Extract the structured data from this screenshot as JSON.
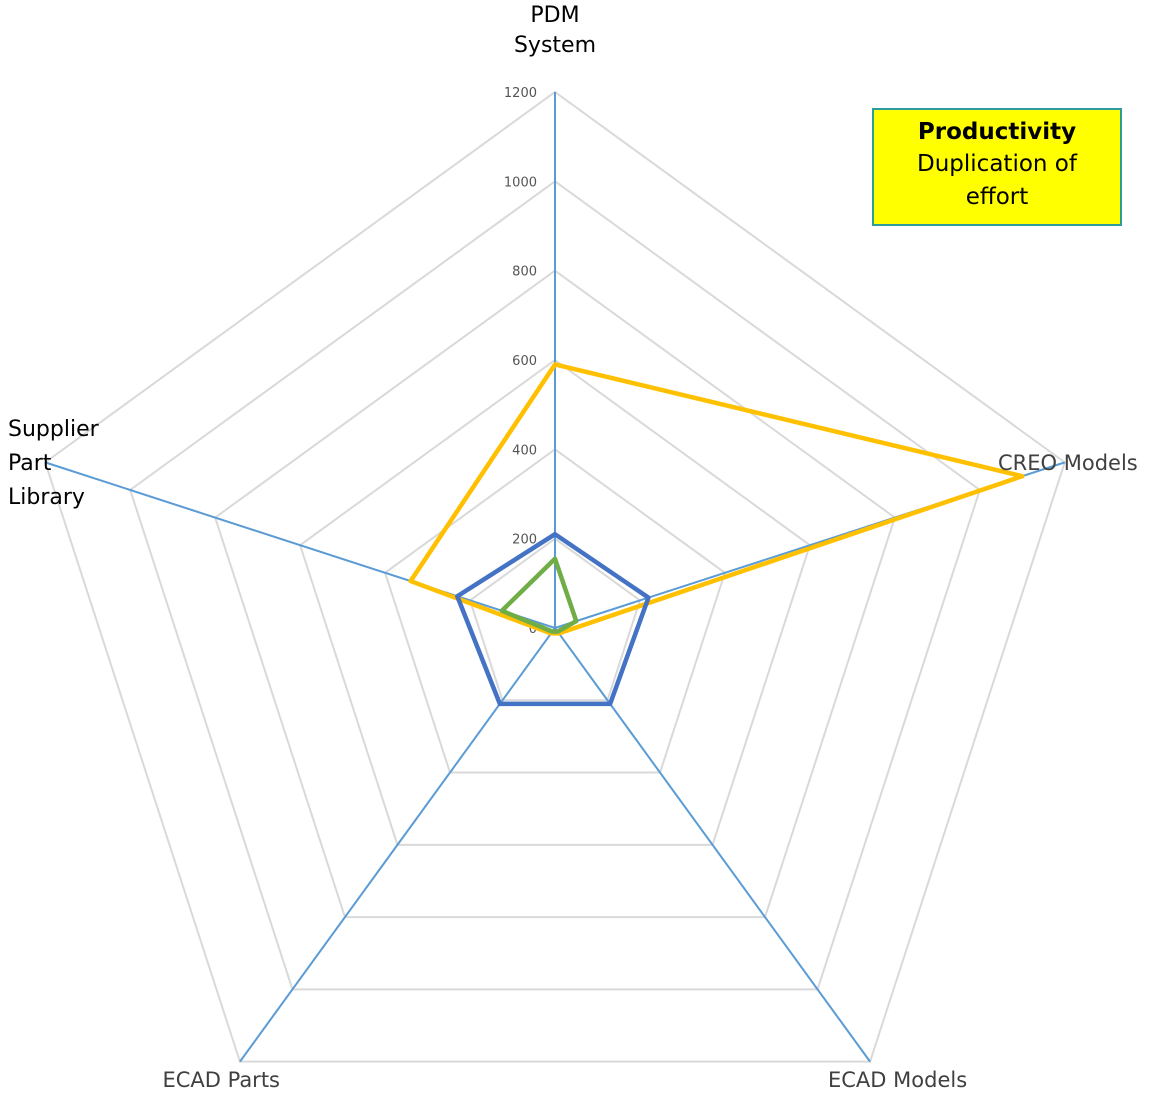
{
  "chart_data": {
    "type": "radar",
    "title": "",
    "categories": [
      "PDM System",
      "CREO Models",
      "ECAD Models",
      "ECAD Parts",
      "Supplier Part Library"
    ],
    "category_label_lines": [
      [
        "PDM",
        "System"
      ],
      [
        "CREO Models"
      ],
      [
        "ECAD Models"
      ],
      [
        "ECAD Parts"
      ],
      [
        "Supplier",
        "Part",
        "Library"
      ]
    ],
    "rlim": [
      0,
      1200
    ],
    "ticks": [
      0,
      200,
      400,
      600,
      800,
      1000,
      1200
    ],
    "tick_labels": [
      "0",
      "200",
      "400",
      "600",
      "800",
      "1000",
      "1200"
    ],
    "grid": true,
    "series": [
      {
        "color": "#ffc000",
        "values": [
          590,
          1100,
          15,
          15,
          340
        ]
      },
      {
        "color": "#4472c4",
        "values": [
          210,
          220,
          210,
          210,
          230
        ]
      },
      {
        "color": "#70ad47",
        "values": [
          155,
          50,
          10,
          10,
          125
        ]
      }
    ],
    "annotation": {
      "title": "Productivity",
      "body": "Duplication of effort",
      "background": "#ffff00",
      "border": "#2e9c9c"
    },
    "colors": {
      "grid": "#d9d9d9",
      "spokes": "#5b9bd5"
    }
  }
}
